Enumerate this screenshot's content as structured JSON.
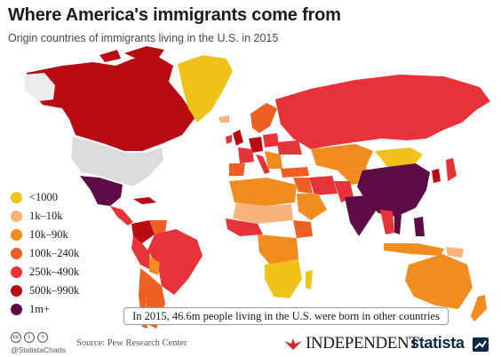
{
  "header": {
    "title": "Where America's immigrants come from",
    "subtitle": "Origin countries of immigrants living in the U.S. in 2015"
  },
  "colors": {
    "lt1000": "#efc31a",
    "1k_10k": "#f9b27a",
    "10k_90k": "#f38c1f",
    "100k_240k": "#ef5f23",
    "250k_490k": "#e8323a",
    "500k_990k": "#b80b12",
    "1m_plus": "#5f0b45",
    "us": "#dcdcdc",
    "no_data": "#ececec"
  },
  "legend": {
    "items": [
      {
        "label": "<1000",
        "color": "#efc31a"
      },
      {
        "label": "1k–10k",
        "color": "#f9b27a"
      },
      {
        "label": "10k–90k",
        "color": "#f38c1f"
      },
      {
        "label": "100k–240k",
        "color": "#ef5f23"
      },
      {
        "label": "250k–490k",
        "color": "#e8323a"
      },
      {
        "label": "500k–990k",
        "color": "#b80b12"
      },
      {
        "label": "1m+",
        "color": "#5f0b45"
      }
    ]
  },
  "map": {
    "regions": [
      {
        "name": "Canada",
        "bin": "500k–990k"
      },
      {
        "name": "Greenland",
        "bin": "<1000"
      },
      {
        "name": "Mexico",
        "bin": "1m+"
      },
      {
        "name": "Russia",
        "bin": "250k–490k"
      },
      {
        "name": "China",
        "bin": "1m+"
      },
      {
        "name": "India",
        "bin": "1m+"
      },
      {
        "name": "Philippines",
        "bin": "1m+"
      },
      {
        "name": "Vietnam",
        "bin": "1m+"
      },
      {
        "name": "Mongolia",
        "bin": "<1000"
      },
      {
        "name": "Australia",
        "bin": "10k–90k"
      },
      {
        "name": "Brazil",
        "bin": "250k–490k"
      },
      {
        "name": "Colombia",
        "bin": "500k–990k"
      },
      {
        "name": "Argentina",
        "bin": "100k–240k"
      }
    ]
  },
  "note": "In 2015, 46.6m people living in the U.S. were born in other countries",
  "footer": {
    "cc_icons": [
      "cc",
      "i",
      "="
    ],
    "handle": "@StatistaCharts",
    "source": "Source: Pew Research Center",
    "independent": "INDEPENDENT",
    "statista": "statista"
  }
}
